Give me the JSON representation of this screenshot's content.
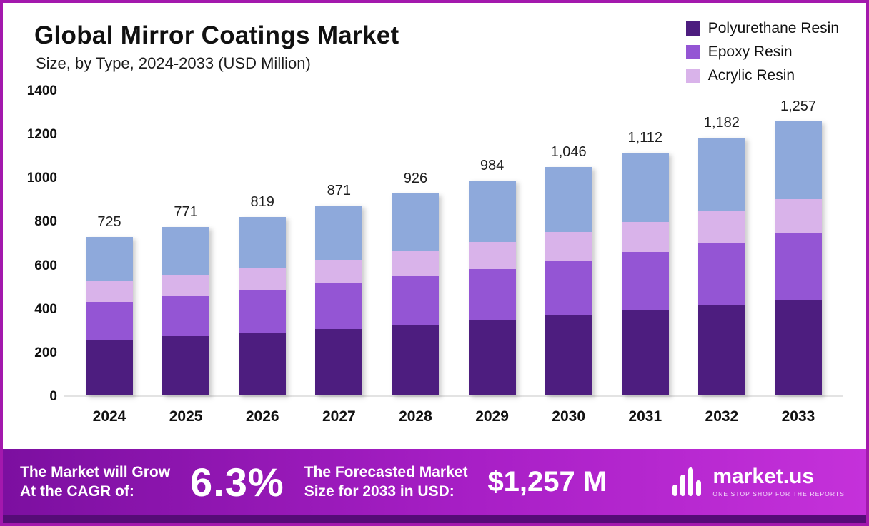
{
  "header": {
    "title": "Global Mirror Coatings Market",
    "subtitle": "Size, by Type, 2024-2033 (USD Million)"
  },
  "chart_data": {
    "type": "bar",
    "stacked": true,
    "title": "Global Mirror Coatings Market Size, by Type, 2024-2033 (USD Million)",
    "xlabel": "",
    "ylabel": "USD Million",
    "ylim": [
      0,
      1400
    ],
    "yticks": [
      0,
      200,
      400,
      600,
      800,
      1000,
      1200,
      1400
    ],
    "grid": false,
    "legend_position": "top-right",
    "categories": [
      "2024",
      "2025",
      "2026",
      "2027",
      "2028",
      "2029",
      "2030",
      "2031",
      "2032",
      "2033"
    ],
    "totals": [
      725,
      771,
      819,
      871,
      926,
      984,
      1046,
      1112,
      1182,
      1257
    ],
    "total_labels": [
      "725",
      "771",
      "819",
      "871",
      "926",
      "984",
      "1,046",
      "1,112",
      "1,182",
      "1,257"
    ],
    "series": [
      {
        "name": "Polyurethane Resin",
        "color": "#4d1d7f",
        "in_legend": true,
        "values": [
          254,
          270,
          287,
          305,
          324,
          344,
          366,
          389,
          414,
          440
        ]
      },
      {
        "name": "Epoxy Resin",
        "color": "#9455d4",
        "in_legend": true,
        "values": [
          174,
          185,
          197,
          209,
          222,
          236,
          251,
          267,
          284,
          302
        ]
      },
      {
        "name": "Acrylic Resin",
        "color": "#d9b3ea",
        "in_legend": true,
        "values": [
          94,
          96,
          102,
          109,
          116,
          123,
          131,
          139,
          148,
          157
        ]
      },
      {
        "name": "Unlabeled (blue top segment)",
        "color": "#8ea9db",
        "in_legend": false,
        "values": [
          203,
          220,
          233,
          248,
          264,
          281,
          298,
          317,
          336,
          358
        ]
      }
    ]
  },
  "footer": {
    "cagr_label": "The Market will Grow\nAt the CAGR of:",
    "cagr_value": "6.3%",
    "forecast_label": "The Forecasted Market\nSize for 2033 in USD:",
    "forecast_value": "$1,257 M",
    "brand_name": "market.us",
    "brand_tagline": "One Stop Shop for the Reports"
  }
}
